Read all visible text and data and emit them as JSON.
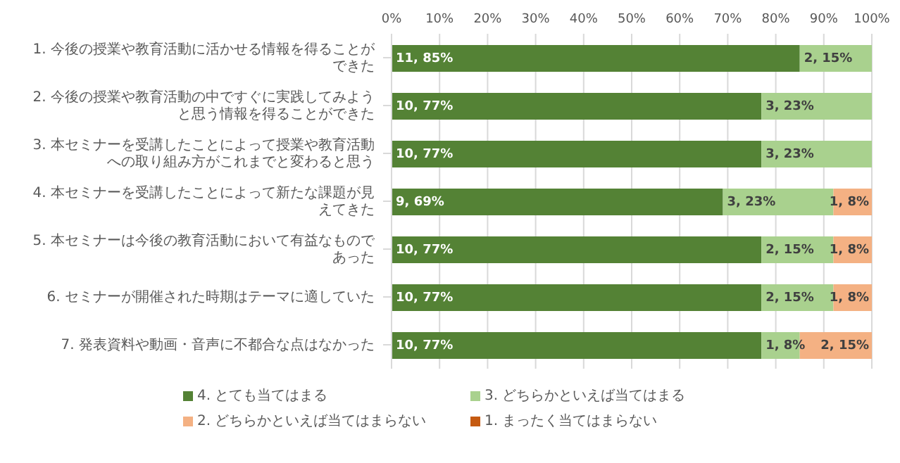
{
  "chart_data": {
    "type": "bar",
    "orientation": "horizontal",
    "stacked": true,
    "categories": [
      "1. 今後の授業や教育活動に活かせる情報を得ることができた",
      "2. 今後の授業や教育活動の中ですぐに実践してみようと思う情報を得ることができた",
      "3. 本セミナーを受講したことによって授業や教育活動への取り組み方がこれまでと変わると思う",
      "4. 本セミナーを受講したことによって新たな課題が見えてきた",
      "5. 本セミナーは今後の教育活動において有益なものであった",
      "6. セミナーが開催された時期はテーマに適していた",
      "7. 発表資料や動画・音声に不都合な点はなかった"
    ],
    "series": [
      {
        "name": "4. とても当てはまる",
        "color": "#548235",
        "values": [
          85,
          77,
          77,
          69,
          77,
          77,
          77
        ],
        "value_labels": [
          "11, 85%",
          "10, 77%",
          "10, 77%",
          "9, 69%",
          "10, 77%",
          "10, 77%",
          "10, 77%"
        ]
      },
      {
        "name": "3. どちらかといえば当てはまる",
        "color": "#a9d18e",
        "values": [
          15,
          23,
          23,
          23,
          15,
          15,
          8
        ],
        "value_labels": [
          "2, 15%",
          "3, 23%",
          "3, 23%",
          "3, 23%",
          "2, 15%",
          "2, 15%",
          "1, 8%"
        ]
      },
      {
        "name": "2. どちらかといえば当てはまらない",
        "color": "#f4b183",
        "values": [
          null,
          null,
          null,
          8,
          8,
          8,
          15
        ],
        "value_labels": [
          null,
          null,
          null,
          "1, 8%",
          "1, 8%",
          "1, 8%",
          "2, 15%"
        ]
      },
      {
        "name": "1. まったく当てはまらない",
        "color": "#c55a11",
        "values": [
          null,
          null,
          null,
          null,
          null,
          null,
          null
        ]
      }
    ],
    "xlim": [
      0,
      100
    ],
    "xticks": [
      {
        "value": 0,
        "label": "0%"
      },
      {
        "value": 10,
        "label": "10%"
      },
      {
        "value": 20,
        "label": "20%"
      },
      {
        "value": 30,
        "label": "30%"
      },
      {
        "value": 40,
        "label": "40%"
      },
      {
        "value": 50,
        "label": "50%"
      },
      {
        "value": 60,
        "label": "60%"
      },
      {
        "value": 70,
        "label": "70%"
      },
      {
        "value": 80,
        "label": "80%"
      },
      {
        "value": 90,
        "label": "90%"
      },
      {
        "value": 100,
        "label": "100%"
      }
    ],
    "grid": "x",
    "legend": "bottom"
  }
}
